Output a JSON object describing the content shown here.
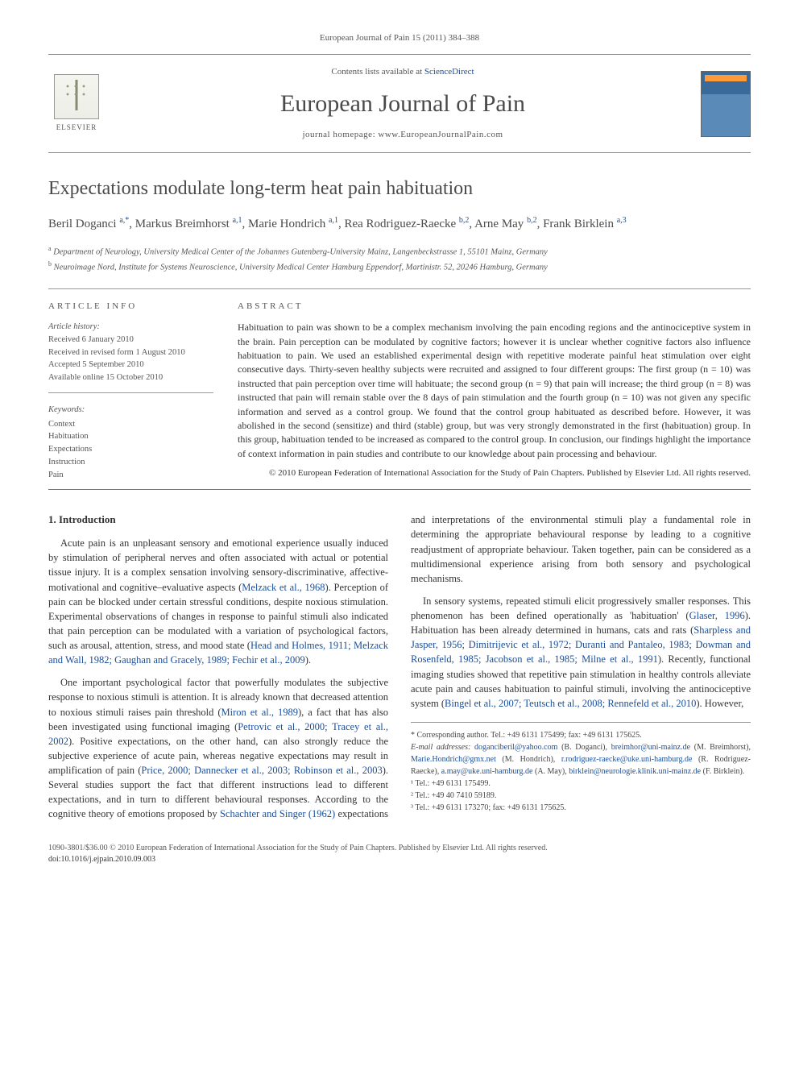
{
  "citation": "European Journal of Pain 15 (2011) 384–388",
  "header": {
    "contents_prefix": "Contents lists available at ",
    "contents_link": "ScienceDirect",
    "journal_name": "European Journal of Pain",
    "homepage_prefix": "journal homepage: ",
    "homepage_url": "www.EuropeanJournalPain.com",
    "publisher_label": "ELSEVIER"
  },
  "article": {
    "title": "Expectations modulate long-term heat pain habituation",
    "authors_html": "Beril Doganci <sup>a,*</sup>, Markus Breimhorst <sup>a,1</sup>, Marie Hondrich <sup>a,1</sup>, Rea Rodriguez-Raecke <sup>b,2</sup>, Arne May <sup>b,2</sup>, Frank Birklein <sup>a,3</sup>",
    "affiliations": [
      {
        "sup": "a",
        "text": "Department of Neurology, University Medical Center of the Johannes Gutenberg-University Mainz, Langenbeckstrasse 1, 55101 Mainz, Germany"
      },
      {
        "sup": "b",
        "text": "Neuroimage Nord, Institute for Systems Neuroscience, University Medical Center Hamburg Eppendorf, Martinistr. 52, 20246 Hamburg, Germany"
      }
    ]
  },
  "info": {
    "heading": "ARTICLE INFO",
    "history_label": "Article history:",
    "history": [
      "Received 6 January 2010",
      "Received in revised form 1 August 2010",
      "Accepted 5 September 2010",
      "Available online 15 October 2010"
    ],
    "keywords_label": "Keywords:",
    "keywords": [
      "Context",
      "Habituation",
      "Expectations",
      "Instruction",
      "Pain"
    ]
  },
  "abstract": {
    "heading": "ABSTRACT",
    "text": "Habituation to pain was shown to be a complex mechanism involving the pain encoding regions and the antinociceptive system in the brain. Pain perception can be modulated by cognitive factors; however it is unclear whether cognitive factors also influence habituation to pain. We used an established experimental design with repetitive moderate painful heat stimulation over eight consecutive days. Thirty-seven healthy subjects were recruited and assigned to four different groups: The first group (n = 10) was instructed that pain perception over time will habituate; the second group (n = 9) that pain will increase; the third group (n = 8) was instructed that pain will remain stable over the 8 days of pain stimulation and the fourth group (n = 10) was not given any specific information and served as a control group. We found that the control group habituated as described before. However, it was abolished in the second (sensitize) and third (stable) group, but was very strongly demonstrated in the first (habituation) group. In this group, habituation tended to be increased as compared to the control group. In conclusion, our findings highlight the importance of context information in pain studies and contribute to our knowledge about pain processing and behaviour.",
    "copyright": "© 2010 European Federation of International Association for the Study of Pain Chapters. Published by Elsevier Ltd. All rights reserved."
  },
  "body": {
    "section_number": "1.",
    "section_title": "Introduction",
    "paragraphs": [
      "Acute pain is an unpleasant sensory and emotional experience usually induced by stimulation of peripheral nerves and often associated with actual or potential tissue injury. It is a complex sensation involving sensory-discriminative, affective-motivational and cognitive–evaluative aspects (<span class=\"ref\">Melzack et al., 1968</span>). Perception of pain can be blocked under certain stressful conditions, despite noxious stimulation. Experimental observations of changes in response to painful stimuli also indicated that pain perception can be modulated with a variation of psychological factors, such as arousal, attention, stress, and mood state (<span class=\"ref\">Head and Holmes, 1911; Melzack and Wall, 1982; Gaughan and Gracely, 1989; Fechir et al., 2009</span>).",
      "One important psychological factor that powerfully modulates the subjective response to noxious stimuli is attention. It is already known that decreased attention to noxious stimuli raises pain threshold (<span class=\"ref\">Miron et al., 1989</span>), a fact that has also been investigated using functional imaging (<span class=\"ref\">Petrovic et al., 2000; Tracey et al., 2002</span>). Positive expectations, on the other hand, can also strongly reduce the subjective experience of acute pain, whereas negative expectations may result in amplification of pain (<span class=\"ref\">Price, 2000; Dannecker et al., 2003; Robinson et al., 2003</span>). Several studies support the fact that different instructions lead to different expectations, and in turn to different behavioural responses. According to the cognitive theory of emotions proposed by <span class=\"ref\">Schachter and Singer (1962)</span> expectations and interpretations of the environmental stimuli play a fundamental role in determining the appropriate behavioural response by leading to a cognitive readjustment of appropriate behaviour. Taken together, pain can be considered as a multidimensional experience arising from both sensory and psychological mechanisms.",
      "In sensory systems, repeated stimuli elicit progressively smaller responses. This phenomenon has been defined operationally as 'habituation' (<span class=\"ref\">Glaser, 1996</span>). Habituation has been already determined in humans, cats and rats (<span class=\"ref\">Sharpless and Jasper, 1956; Dimitrijevic et al., 1972; Duranti and Pantaleo, 1983; Dowman and Rosenfeld, 1985; Jacobson et al., 1985; Milne et al., 1991</span>). Recently, functional imaging studies showed that repetitive pain stimulation in healthy controls alleviate acute pain and causes habituation to painful stimuli, involving the antinociceptive system (<span class=\"ref\">Bingel et al., 2007; Teutsch et al., 2008; Rennefeld et al., 2010</span>). However,"
    ]
  },
  "footnotes": {
    "corresponding": "* Corresponding author. Tel.: +49 6131 175499; fax: +49 6131 175625.",
    "emails_label": "E-mail addresses:",
    "emails": [
      {
        "addr": "doganciberil@yahoo.com",
        "who": "(B. Doganci)"
      },
      {
        "addr": "breimhor@uni-mainz.de",
        "who": "(M. Breimhorst)"
      },
      {
        "addr": "Marie.Hondrich@gmx.net",
        "who": "(M. Hondrich)"
      },
      {
        "addr": "r.rodriguez-raecke@uke.uni-hamburg.de",
        "who": "(R. Rodriguez-Raecke)"
      },
      {
        "addr": "a.may@uke.uni-hamburg.de",
        "who": "(A. May)"
      },
      {
        "addr": "birklein@neurologie.klinik.uni-mainz.de",
        "who": "(F. Birklein)"
      }
    ],
    "tels": [
      "¹ Tel.: +49 6131 175499.",
      "² Tel.: +49 40 7410 59189.",
      "³ Tel.: +49 6131 173270; fax: +49 6131 175625."
    ]
  },
  "footer": {
    "line1": "1090-3801/$36.00 © 2010 European Federation of International Association for the Study of Pain Chapters. Published by Elsevier Ltd. All rights reserved.",
    "doi": "doi:10.1016/j.ejpain.2010.09.003"
  },
  "colors": {
    "link": "#1a4f9c",
    "text": "#333333",
    "muted": "#555555",
    "rule": "#999999",
    "background": "#ffffff"
  },
  "typography": {
    "body_fontsize_pt": 9.5,
    "title_fontsize_pt": 18,
    "journal_fontsize_pt": 22,
    "font_family": "Georgia, Times New Roman, serif"
  }
}
